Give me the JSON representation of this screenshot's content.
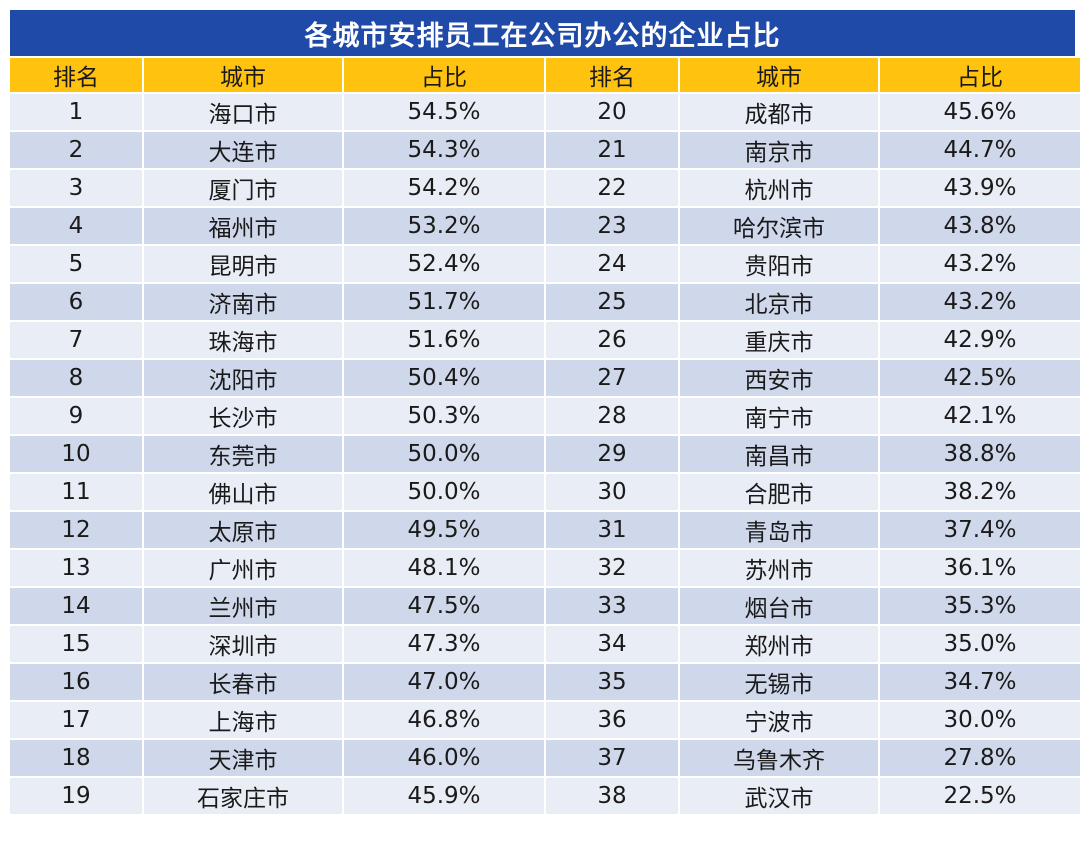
{
  "title": "各城市安排员工在公司办公的企业占比",
  "headers": [
    "排名",
    "城市",
    "占比",
    "排名",
    "城市",
    "占比"
  ],
  "rows": [
    {
      "left": {
        "rank": "1",
        "city": "海口市",
        "pct": "54.5%"
      },
      "right": {
        "rank": "20",
        "city": "成都市",
        "pct": "45.6%"
      }
    },
    {
      "left": {
        "rank": "2",
        "city": "大连市",
        "pct": "54.3%"
      },
      "right": {
        "rank": "21",
        "city": "南京市",
        "pct": "44.7%"
      }
    },
    {
      "left": {
        "rank": "3",
        "city": "厦门市",
        "pct": "54.2%"
      },
      "right": {
        "rank": "22",
        "city": "杭州市",
        "pct": "43.9%"
      }
    },
    {
      "left": {
        "rank": "4",
        "city": "福州市",
        "pct": "53.2%"
      },
      "right": {
        "rank": "23",
        "city": "哈尔滨市",
        "pct": "43.8%"
      }
    },
    {
      "left": {
        "rank": "5",
        "city": "昆明市",
        "pct": "52.4%"
      },
      "right": {
        "rank": "24",
        "city": "贵阳市",
        "pct": "43.2%"
      }
    },
    {
      "left": {
        "rank": "6",
        "city": "济南市",
        "pct": "51.7%"
      },
      "right": {
        "rank": "25",
        "city": "北京市",
        "pct": "43.2%"
      }
    },
    {
      "left": {
        "rank": "7",
        "city": "珠海市",
        "pct": "51.6%"
      },
      "right": {
        "rank": "26",
        "city": "重庆市",
        "pct": "42.9%"
      }
    },
    {
      "left": {
        "rank": "8",
        "city": "沈阳市",
        "pct": "50.4%"
      },
      "right": {
        "rank": "27",
        "city": "西安市",
        "pct": "42.5%"
      }
    },
    {
      "left": {
        "rank": "9",
        "city": "长沙市",
        "pct": "50.3%"
      },
      "right": {
        "rank": "28",
        "city": "南宁市",
        "pct": "42.1%"
      }
    },
    {
      "left": {
        "rank": "10",
        "city": "东莞市",
        "pct": "50.0%"
      },
      "right": {
        "rank": "29",
        "city": "南昌市",
        "pct": "38.8%"
      }
    },
    {
      "left": {
        "rank": "11",
        "city": "佛山市",
        "pct": "50.0%"
      },
      "right": {
        "rank": "30",
        "city": "合肥市",
        "pct": "38.2%"
      }
    },
    {
      "left": {
        "rank": "12",
        "city": "太原市",
        "pct": "49.5%"
      },
      "right": {
        "rank": "31",
        "city": "青岛市",
        "pct": "37.4%"
      }
    },
    {
      "left": {
        "rank": "13",
        "city": "广州市",
        "pct": "48.1%"
      },
      "right": {
        "rank": "32",
        "city": "苏州市",
        "pct": "36.1%"
      }
    },
    {
      "left": {
        "rank": "14",
        "city": "兰州市",
        "pct": "47.5%"
      },
      "right": {
        "rank": "33",
        "city": "烟台市",
        "pct": "35.3%"
      }
    },
    {
      "left": {
        "rank": "15",
        "city": "深圳市",
        "pct": "47.3%"
      },
      "right": {
        "rank": "34",
        "city": "郑州市",
        "pct": "35.0%"
      }
    },
    {
      "left": {
        "rank": "16",
        "city": "长春市",
        "pct": "47.0%"
      },
      "right": {
        "rank": "35",
        "city": "无锡市",
        "pct": "34.7%"
      }
    },
    {
      "left": {
        "rank": "17",
        "city": "上海市",
        "pct": "46.8%"
      },
      "right": {
        "rank": "36",
        "city": "宁波市",
        "pct": "30.0%"
      }
    },
    {
      "left": {
        "rank": "18",
        "city": "天津市",
        "pct": "46.0%"
      },
      "right": {
        "rank": "37",
        "city": "乌鲁木齐",
        "pct": "27.8%"
      }
    },
    {
      "left": {
        "rank": "19",
        "city": "石家庄市",
        "pct": "45.9%"
      },
      "right": {
        "rank": "38",
        "city": "武汉市",
        "pct": "22.5%"
      }
    }
  ],
  "colors": {
    "title_bg": "#1f4aa8",
    "header_bg": "#ffc20e",
    "row_light": "#e9edf6",
    "row_dark": "#cfd7ea"
  }
}
